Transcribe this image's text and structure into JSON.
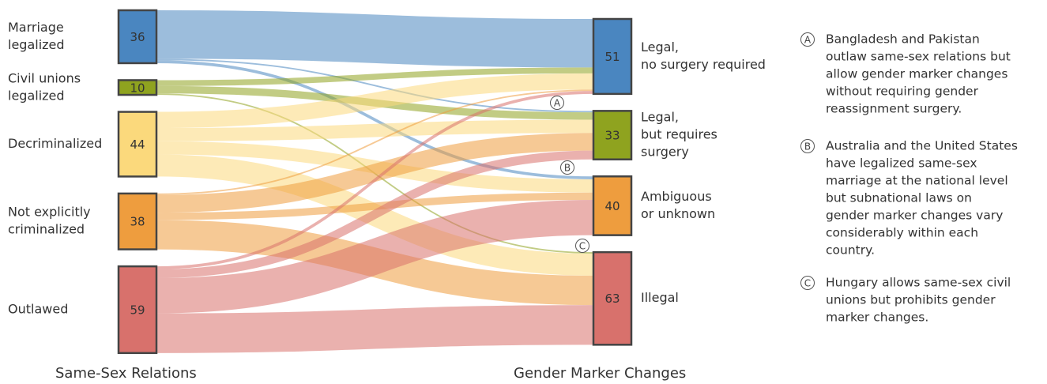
{
  "chart_data": {
    "type": "sankey",
    "column_titles": [
      "Same-Sex Relations",
      "Gender Marker Changes"
    ],
    "nodes": [
      {
        "label": [
          "Marriage",
          "legalized"
        ],
        "value": 36,
        "color": "#4a86c0",
        "column": 0
      },
      {
        "label": [
          "Civil unions",
          "legalized"
        ],
        "value": 10,
        "color": "#8fa31f",
        "column": 0
      },
      {
        "label": [
          "Decriminalized"
        ],
        "value": 44,
        "color": "#fbd97c",
        "column": 0
      },
      {
        "label": [
          "Not explicitly",
          "criminalized"
        ],
        "value": 38,
        "color": "#ee9d3e",
        "column": 0
      },
      {
        "label": [
          "Outlawed"
        ],
        "value": 59,
        "color": "#d8716c",
        "column": 0
      },
      {
        "label": [
          "Legal,",
          "no surgery required"
        ],
        "value": 51,
        "color": "#4a86c0",
        "column": 1
      },
      {
        "label": [
          "Legal,",
          "but requires",
          "surgery"
        ],
        "value": 33,
        "color": "#8fa31f",
        "column": 1
      },
      {
        "label": [
          "Ambiguous",
          "or unknown"
        ],
        "value": 40,
        "color": "#ee9d3e",
        "column": 1
      },
      {
        "label": [
          "Illegal"
        ],
        "value": 63,
        "color": "#d8716c",
        "column": 1
      }
    ],
    "links": [
      {
        "source": 0,
        "target": 5,
        "value": 33
      },
      {
        "source": 0,
        "target": 6,
        "value": 1
      },
      {
        "source": 0,
        "target": 7,
        "value": 2
      },
      {
        "source": 1,
        "target": 5,
        "value": 4
      },
      {
        "source": 1,
        "target": 6,
        "value": 5
      },
      {
        "source": 1,
        "target": 8,
        "value": 1
      },
      {
        "source": 2,
        "target": 5,
        "value": 11
      },
      {
        "source": 2,
        "target": 6,
        "value": 9
      },
      {
        "source": 2,
        "target": 7,
        "value": 9
      },
      {
        "source": 2,
        "target": 8,
        "value": 15
      },
      {
        "source": 3,
        "target": 5,
        "value": 1
      },
      {
        "source": 3,
        "target": 6,
        "value": 12
      },
      {
        "source": 3,
        "target": 7,
        "value": 5
      },
      {
        "source": 3,
        "target": 8,
        "value": 20
      },
      {
        "source": 4,
        "target": 5,
        "value": 2
      },
      {
        "source": 4,
        "target": 6,
        "value": 6
      },
      {
        "source": 4,
        "target": 7,
        "value": 24
      },
      {
        "source": 4,
        "target": 8,
        "value": 27
      }
    ],
    "annotations": [
      {
        "letter": "A",
        "lines": [
          "Bangladesh and Pakistan",
          "outlaw same-sex relations but",
          "allow gender marker changes",
          "without requiring gender",
          "reassignment surgery."
        ]
      },
      {
        "letter": "B",
        "lines": [
          "Australia and the United States",
          "have legalized same-sex",
          "marriage at the national level",
          "but subnational laws on",
          "gender marker changes vary",
          "considerably within each",
          "country."
        ]
      },
      {
        "letter": "C",
        "lines": [
          "Hungary allows same-sex civil",
          "unions but prohibits gender",
          "marker changes."
        ]
      }
    ]
  }
}
